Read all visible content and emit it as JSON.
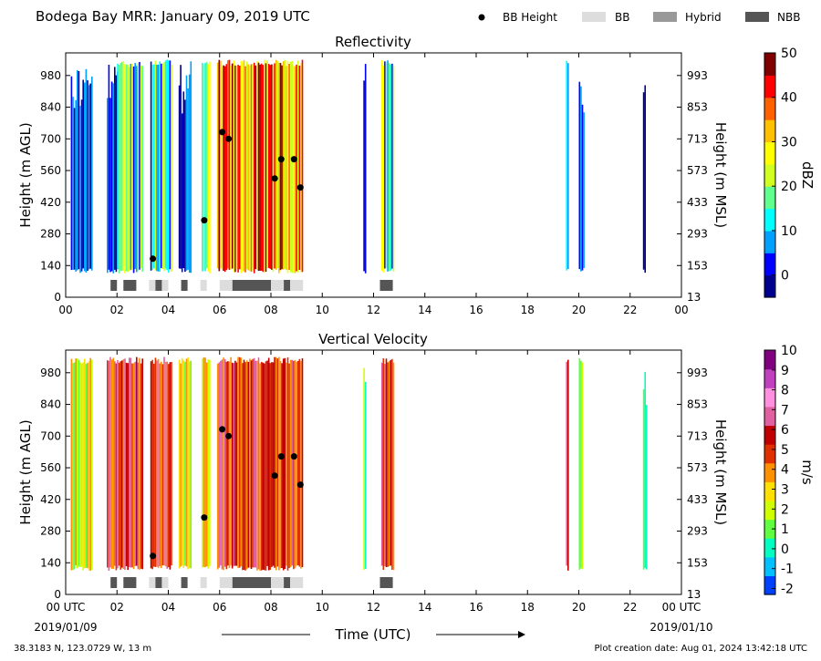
{
  "header": {
    "title": "Bodega Bay MRR:  January 09, 2019 UTC",
    "legend": [
      {
        "label": "BB Height",
        "kind": "dot",
        "color": "#000000"
      },
      {
        "label": "BB",
        "kind": "rect",
        "color": "#dddddd"
      },
      {
        "label": "Hybrid",
        "kind": "rect",
        "color": "#999999"
      },
      {
        "label": "NBB",
        "kind": "rect",
        "color": "#555555"
      }
    ]
  },
  "footer": {
    "location": "38.3183 N, 123.0729 W, 13 m",
    "creation": "Plot creation date: Aug 01, 2024 13:42:18 UTC",
    "xlabel": "Time (UTC)",
    "start_date": "2019/01/09",
    "end_date": "2019/01/10"
  },
  "colors": {
    "bb": "#dddddd",
    "hybrid": "#999999",
    "nbb": "#555555",
    "background": "#ffffff",
    "dot": "#000000"
  },
  "chart_data": [
    {
      "type": "heatmap",
      "title": "Reflectivity",
      "ylabel": "Height (m AGL)",
      "ylabel_right": "Height (m MSL)",
      "colorbar_label": "dBZ",
      "xlim": [
        0,
        24
      ],
      "ylim": [
        0,
        1080
      ],
      "x_ticks": [
        "00",
        "02",
        "04",
        "06",
        "08",
        "10",
        "12",
        "14",
        "16",
        "18",
        "20",
        "22",
        "00"
      ],
      "y_ticks_left": [
        "0",
        "140",
        "280",
        "420",
        "560",
        "700",
        "840",
        "980"
      ],
      "y_ticks_right": [
        "13",
        "153",
        "293",
        "433",
        "573",
        "713",
        "853",
        "993"
      ],
      "colorbar": {
        "min": -5,
        "max": 50,
        "ticks": [
          "0",
          "10",
          "20",
          "30",
          "40",
          "50"
        ],
        "tick_values": [
          0,
          10,
          20,
          30,
          40,
          50
        ],
        "colormap": [
          "#00008f",
          "#0000ff",
          "#00a0ff",
          "#00ffff",
          "#60ff90",
          "#d0ff20",
          "#ffff00",
          "#ffc000",
          "#ff6000",
          "#ff0000",
          "#800000"
        ]
      },
      "bb_height_points": [
        {
          "time": 3.4,
          "height": 170
        },
        {
          "time": 5.4,
          "height": 340
        },
        {
          "time": 6.1,
          "height": 730
        },
        {
          "time": 6.35,
          "height": 700
        },
        {
          "time": 8.15,
          "height": 525
        },
        {
          "time": 8.4,
          "height": 610
        },
        {
          "time": 8.9,
          "height": 610
        },
        {
          "time": 9.15,
          "height": 485
        }
      ],
      "precip_segments": [
        {
          "start": 0.2,
          "end": 1.0,
          "level": "low"
        },
        {
          "start": 1.6,
          "end": 2.0,
          "level": "low"
        },
        {
          "start": 2.0,
          "end": 3.0,
          "level": "mid"
        },
        {
          "start": 3.3,
          "end": 4.1,
          "level": "mid"
        },
        {
          "start": 4.4,
          "end": 4.9,
          "level": "low"
        },
        {
          "start": 5.3,
          "end": 5.6,
          "level": "mid"
        },
        {
          "start": 5.9,
          "end": 9.2,
          "level": "high"
        },
        {
          "start": 11.6,
          "end": 11.7,
          "level": "low"
        },
        {
          "start": 12.3,
          "end": 12.8,
          "level": "mid"
        },
        {
          "start": 19.5,
          "end": 19.6,
          "level": "mid"
        },
        {
          "start": 20.0,
          "end": 20.2,
          "level": "low"
        },
        {
          "start": 22.5,
          "end": 22.6,
          "level": "low"
        }
      ]
    },
    {
      "type": "heatmap",
      "title": "Vertical Velocity",
      "ylabel": "Height (m AGL)",
      "ylabel_right": "Height (m MSL)",
      "colorbar_label": "m/s",
      "xlim": [
        0,
        24
      ],
      "ylim": [
        0,
        1080
      ],
      "x_ticks": [
        "00 UTC",
        "02",
        "04",
        "06",
        "08",
        "10",
        "12",
        "14",
        "16",
        "18",
        "20",
        "22",
        "00 UTC"
      ],
      "y_ticks_left": [
        "0",
        "140",
        "280",
        "420",
        "560",
        "700",
        "840",
        "980"
      ],
      "y_ticks_right": [
        "13",
        "153",
        "293",
        "433",
        "573",
        "713",
        "853",
        "993"
      ],
      "colorbar": {
        "min": -2.3,
        "max": 10,
        "ticks": [
          "-2",
          "-1",
          "0",
          "1",
          "2",
          "3",
          "4",
          "5",
          "6",
          "7",
          "8",
          "9",
          "10"
        ],
        "tick_values": [
          -2,
          -1,
          0,
          1,
          2,
          3,
          4,
          5,
          6,
          7,
          8,
          9,
          10
        ],
        "colormap": [
          "#0040ff",
          "#00c0ff",
          "#00ffc0",
          "#60ff40",
          "#d0ff00",
          "#ffe000",
          "#ff9000",
          "#e03000",
          "#c00000",
          "#e060a0",
          "#ff90e0",
          "#c040c0",
          "#800080"
        ]
      },
      "bb_height_points": [
        {
          "time": 3.4,
          "height": 170
        },
        {
          "time": 5.4,
          "height": 340
        },
        {
          "time": 6.1,
          "height": 730
        },
        {
          "time": 6.35,
          "height": 700
        },
        {
          "time": 8.15,
          "height": 525
        },
        {
          "time": 8.4,
          "height": 610
        },
        {
          "time": 8.9,
          "height": 610
        },
        {
          "time": 9.15,
          "height": 485
        }
      ],
      "precip_segments": [
        {
          "start": 0.2,
          "end": 1.0,
          "level": "mid"
        },
        {
          "start": 1.6,
          "end": 3.0,
          "level": "high"
        },
        {
          "start": 3.3,
          "end": 4.1,
          "level": "high"
        },
        {
          "start": 4.4,
          "end": 4.9,
          "level": "mid"
        },
        {
          "start": 5.3,
          "end": 5.6,
          "level": "mid"
        },
        {
          "start": 5.9,
          "end": 9.2,
          "level": "high"
        },
        {
          "start": 11.6,
          "end": 11.7,
          "level": "low"
        },
        {
          "start": 12.3,
          "end": 12.8,
          "level": "high"
        },
        {
          "start": 19.5,
          "end": 19.6,
          "level": "high"
        },
        {
          "start": 20.0,
          "end": 20.15,
          "level": "mid"
        },
        {
          "start": 22.5,
          "end": 22.65,
          "level": "low"
        }
      ]
    }
  ],
  "bb_type_bars": [
    {
      "start": 1.75,
      "end": 2.0,
      "type": "nbb"
    },
    {
      "start": 2.25,
      "end": 2.75,
      "type": "nbb"
    },
    {
      "start": 3.25,
      "end": 3.5,
      "type": "bb"
    },
    {
      "start": 3.5,
      "end": 3.75,
      "type": "nbb"
    },
    {
      "start": 3.75,
      "end": 4.0,
      "type": "bb"
    },
    {
      "start": 4.5,
      "end": 4.75,
      "type": "nbb"
    },
    {
      "start": 5.25,
      "end": 5.5,
      "type": "bb"
    },
    {
      "start": 6.0,
      "end": 6.5,
      "type": "bb"
    },
    {
      "start": 6.5,
      "end": 8.0,
      "type": "nbb"
    },
    {
      "start": 8.0,
      "end": 8.5,
      "type": "bb"
    },
    {
      "start": 8.5,
      "end": 8.75,
      "type": "nbb"
    },
    {
      "start": 8.75,
      "end": 9.25,
      "type": "bb"
    },
    {
      "start": 12.25,
      "end": 12.75,
      "type": "nbb"
    }
  ]
}
